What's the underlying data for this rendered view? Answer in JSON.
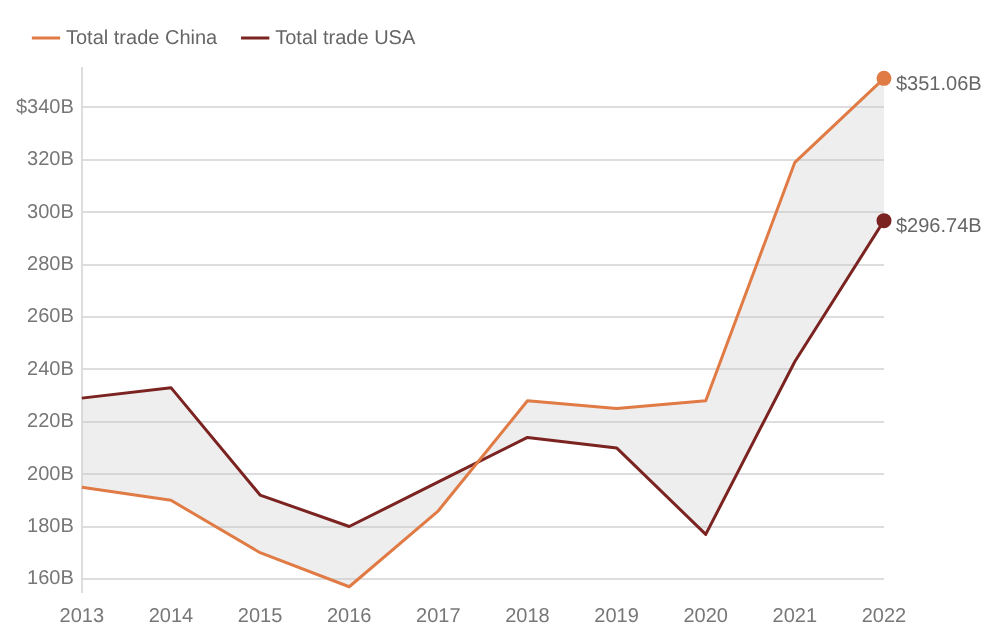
{
  "chart_data": {
    "type": "line",
    "categories": [
      "2013",
      "2014",
      "2015",
      "2016",
      "2017",
      "2018",
      "2019",
      "2020",
      "2021",
      "2022"
    ],
    "series": [
      {
        "name": "Total trade China",
        "color": "#e07b45",
        "values": [
          195,
          190,
          170,
          157,
          186,
          228,
          225,
          228,
          319,
          351.06
        ],
        "value_labels": [
          null,
          null,
          null,
          null,
          null,
          null,
          null,
          null,
          null,
          "$351.06B"
        ]
      },
      {
        "name": "Total trade USA",
        "color": "#7b2320",
        "values": [
          229,
          233,
          192,
          180,
          197,
          214,
          210,
          177,
          243,
          296.74
        ],
        "value_labels": [
          null,
          null,
          null,
          null,
          null,
          null,
          null,
          null,
          null,
          "$296.74B"
        ]
      }
    ],
    "ylim": [
      155,
      355
    ],
    "yticks": [
      {
        "value": 160,
        "label": "160B"
      },
      {
        "value": 180,
        "label": "180B"
      },
      {
        "value": 200,
        "label": "200B"
      },
      {
        "value": 220,
        "label": "220B"
      },
      {
        "value": 240,
        "label": "240B"
      },
      {
        "value": 260,
        "label": "260B"
      },
      {
        "value": 280,
        "label": "280B"
      },
      {
        "value": 300,
        "label": "300B"
      },
      {
        "value": 320,
        "label": "320B"
      },
      {
        "value": 340,
        "label": "$340B"
      }
    ],
    "grid": "y",
    "legend": "top left",
    "line_style": "solid"
  }
}
